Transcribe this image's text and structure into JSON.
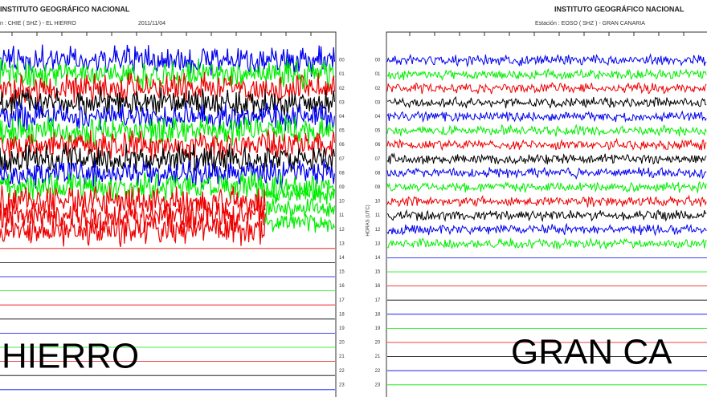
{
  "left": {
    "header": "INSTITUTO GEOGRÁFICO NACIONAL",
    "station": "n : CHIE ( SHZ ) - EL HIERRO",
    "date": "2011/11/04",
    "caption": "HIERRO"
  },
  "right": {
    "header": "INSTITUTO GEOGRÁFICO NACIONAL",
    "station": "Estación : EOSO ( SHZ ) - GRAN CANARIA",
    "axis_label": "HORAS (UTC)",
    "caption": "GRAN CA"
  },
  "hours": [
    "00",
    "01",
    "02",
    "03",
    "04",
    "05",
    "06",
    "07",
    "08",
    "09",
    "10",
    "11",
    "12",
    "13",
    "14",
    "15",
    "16",
    "17",
    "18",
    "19",
    "20",
    "21",
    "22",
    "23"
  ]
}
